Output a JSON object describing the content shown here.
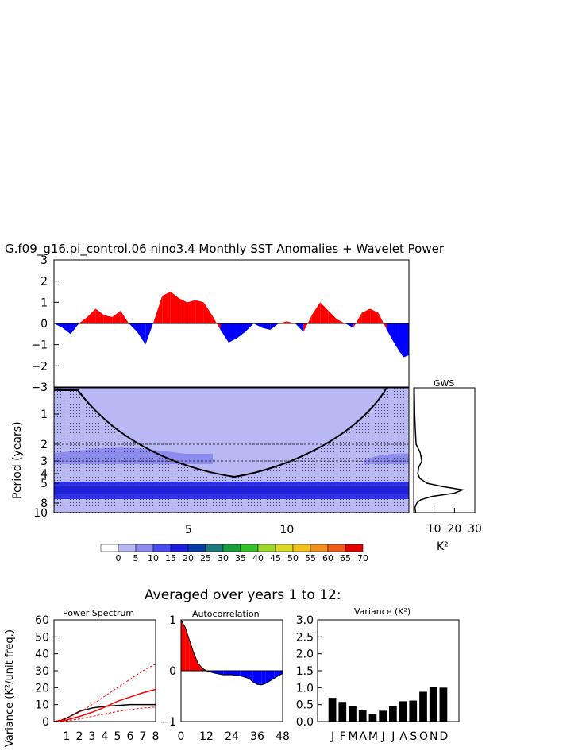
{
  "page_title": "G.f09_g16.pi_control.06 nino3.4 Monthly SST Anomalies + Wavelet Power",
  "averaged_title": "Averaged over years 1 to 12:",
  "colorbar": {
    "labels": [
      "0",
      "5",
      "10",
      "15",
      "20",
      "25",
      "30",
      "35",
      "40",
      "45",
      "50",
      "55",
      "60",
      "65",
      "70"
    ],
    "colors": [
      "#ffffff",
      "#b8b8f4",
      "#8c8cf0",
      "#4b4bf2",
      "#1f1fe0",
      "#0a3ba8",
      "#1f7a7a",
      "#1aa03a",
      "#33c22a",
      "#9bd82a",
      "#dada22",
      "#f2c21a",
      "#f2901a",
      "#f25a1a",
      "#e60000"
    ]
  },
  "chart_data": [
    {
      "type": "area",
      "ylim": [
        -3,
        3
      ],
      "yticks": [
        "3",
        "2",
        "1",
        "0",
        "−1",
        "−2",
        "−3"
      ],
      "xlim": [
        0,
        12.8
      ],
      "positive_color": "#ff0000",
      "negative_color": "#0000ff",
      "x": [
        0.0,
        0.3,
        0.6,
        0.9,
        1.2,
        1.5,
        1.8,
        2.1,
        2.4,
        2.7,
        3.0,
        3.3,
        3.6,
        3.9,
        4.2,
        4.5,
        4.8,
        5.1,
        5.4,
        5.7,
        6.0,
        6.3,
        6.6,
        6.9,
        7.2,
        7.5,
        7.8,
        8.1,
        8.4,
        8.7,
        9.0,
        9.3,
        9.6,
        9.9,
        10.2,
        10.5,
        10.8,
        11.1,
        11.4,
        11.7,
        12.0,
        12.3,
        12.6,
        12.8
      ],
      "y": [
        0.0,
        -0.2,
        -0.5,
        0.0,
        0.3,
        0.7,
        0.4,
        0.3,
        0.6,
        0.0,
        -0.4,
        -1.0,
        0.1,
        1.3,
        1.5,
        1.2,
        1.0,
        1.1,
        1.0,
        0.4,
        -0.3,
        -0.9,
        -0.7,
        -0.4,
        0.0,
        -0.2,
        -0.3,
        0.0,
        0.1,
        0.0,
        -0.4,
        0.4,
        1.0,
        0.6,
        0.2,
        0.0,
        -0.2,
        0.5,
        0.7,
        0.5,
        -0.3,
        -1.0,
        -1.6,
        -1.5
      ]
    },
    {
      "type": "heatmap",
      "title": "",
      "ylabel": "Period (years)",
      "xticks": [
        "5",
        "10"
      ],
      "yticks": [
        "1",
        "2",
        "3",
        "4",
        "5",
        "8",
        "10"
      ],
      "xlim": [
        0,
        12.8
      ],
      "description_bands_period_years": [
        {
          "period_from": 0.5,
          "period_to": 10,
          "power_class": "5"
        },
        {
          "period_from": 2.6,
          "period_to": 3.1,
          "power_class": "10"
        },
        {
          "period_from": 4.8,
          "period_to": 9.0,
          "power_class": "20"
        }
      ]
    },
    {
      "type": "line",
      "title": "GWS",
      "xlabel": "K²",
      "xticks": [
        "10",
        "20",
        "30"
      ],
      "xlim": [
        0,
        30
      ],
      "period": [
        0.5,
        1,
        1.5,
        2,
        2.5,
        3,
        3.5,
        4,
        4.5,
        5,
        5.5,
        6,
        6.5,
        7,
        7.5,
        8,
        9,
        10
      ],
      "power": [
        0.3,
        0.5,
        0.8,
        1.2,
        3.2,
        4.0,
        2.5,
        2.0,
        3.0,
        6.5,
        14.0,
        24.0,
        20.0,
        9.0,
        3.5,
        1.5,
        0.6,
        1.0
      ]
    },
    {
      "type": "line",
      "title": "Power Spectrum",
      "ylabel": "Variance (K²/unit freq.)",
      "xticks": [
        "1",
        "2",
        "3",
        "4",
        "5",
        "6",
        "7",
        "8"
      ],
      "yticks": [
        "0",
        "10",
        "20",
        "30",
        "40",
        "50",
        "60"
      ],
      "ylim": [
        0,
        60
      ],
      "xlim": [
        0,
        8
      ],
      "series": [
        {
          "x": [
            0,
            0.5,
            1,
            1.5,
            2,
            3,
            4,
            5,
            6,
            7,
            8
          ],
          "y": [
            0,
            0.5,
            2,
            4,
            6,
            8,
            9,
            9.5,
            10,
            10,
            10
          ],
          "color": "#000000"
        },
        {
          "x": [
            0,
            1,
            2,
            3,
            4,
            5,
            6,
            7,
            8
          ],
          "y": [
            0,
            1,
            3,
            5.5,
            8.5,
            12,
            14.5,
            17,
            19
          ],
          "color": "#ff0000"
        },
        {
          "x": [
            0,
            1,
            2,
            3,
            4,
            5,
            6,
            7,
            8
          ],
          "y": [
            0,
            2,
            5.5,
            10,
            15,
            20,
            25,
            30,
            34
          ],
          "color": "#ff0000",
          "dash": "3,2"
        },
        {
          "x": [
            0,
            1,
            2,
            3,
            4,
            5,
            6,
            7,
            8
          ],
          "y": [
            0,
            0.5,
            1.5,
            3,
            4.5,
            6,
            7,
            8,
            8.5
          ],
          "color": "#ff0000",
          "dash": "3,2"
        }
      ]
    },
    {
      "type": "area",
      "title": "Autocorrelation",
      "xticks": [
        "0",
        "12",
        "24",
        "36",
        "48"
      ],
      "yticks": [
        "1",
        "0",
        "−1"
      ],
      "ylim": [
        -1,
        1
      ],
      "xlim": [
        0,
        48
      ],
      "x": [
        0,
        2,
        4,
        6,
        8,
        10,
        12,
        16,
        20,
        24,
        28,
        32,
        34,
        36,
        38,
        40,
        44,
        48
      ],
      "y": [
        1.0,
        0.85,
        0.6,
        0.35,
        0.15,
        0.05,
        0.0,
        -0.05,
        -0.08,
        -0.08,
        -0.1,
        -0.15,
        -0.22,
        -0.27,
        -0.28,
        -0.25,
        -0.15,
        -0.05
      ]
    },
    {
      "type": "bar",
      "title": "Variance (K²)",
      "categories": [
        "J",
        "F",
        "M",
        "A",
        "M",
        "J",
        "J",
        "A",
        "S",
        "O",
        "N",
        "D"
      ],
      "values": [
        0.7,
        0.58,
        0.45,
        0.35,
        0.22,
        0.32,
        0.45,
        0.6,
        0.62,
        0.88,
        1.03,
        1.0
      ],
      "yticks": [
        "0.0",
        "0.5",
        "1.0",
        "1.5",
        "2.0",
        "2.5",
        "3.0"
      ],
      "ylim": [
        0,
        3
      ]
    }
  ]
}
